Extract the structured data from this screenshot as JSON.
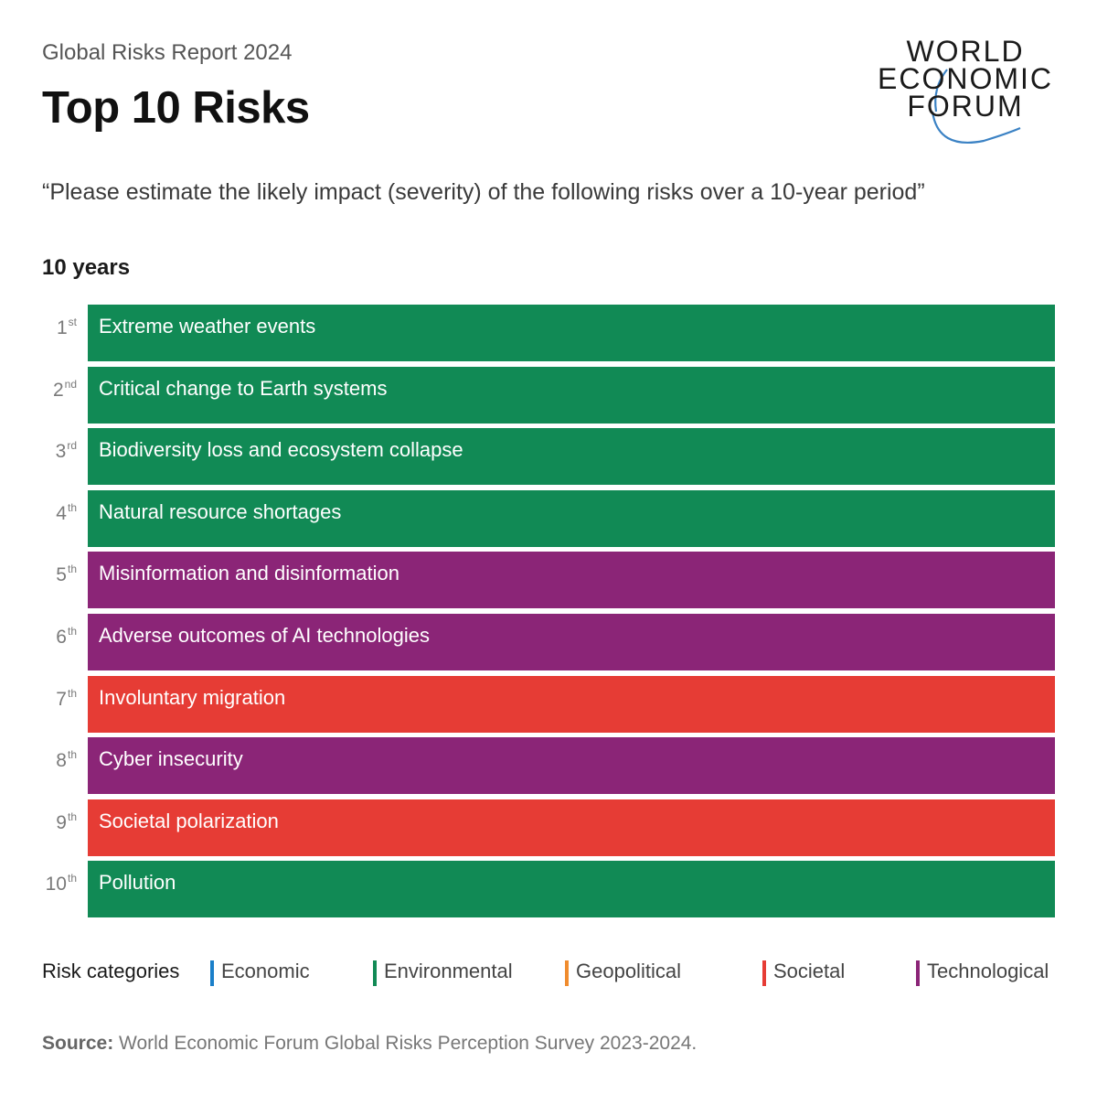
{
  "header": {
    "report_name": "Global Risks Report 2024",
    "title": "Top 10 Risks",
    "logo_lines": [
      "WORLD",
      "ECONOMIC",
      "FORUM"
    ]
  },
  "question": "“Please estimate the likely impact (severity) of the following risks over a 10-year period”",
  "period_label": "10 years",
  "colors": {
    "Economic": "#1a7fc9",
    "Environmental": "#118a55",
    "Geopolitical": "#f08c2e",
    "Societal": "#e63c35",
    "Technological": "#8b2577",
    "logo_arc": "#3b82c4"
  },
  "chart_data": {
    "type": "table",
    "title": "Top 10 Risks",
    "columns": [
      "rank",
      "risk",
      "category"
    ],
    "rows": [
      {
        "rank": "1",
        "suffix": "st",
        "risk": "Extreme weather events",
        "category": "Environmental"
      },
      {
        "rank": "2",
        "suffix": "nd",
        "risk": "Critical change to Earth systems",
        "category": "Environmental"
      },
      {
        "rank": "3",
        "suffix": "rd",
        "risk": "Biodiversity loss and ecosystem collapse",
        "category": "Environmental"
      },
      {
        "rank": "4",
        "suffix": "th",
        "risk": "Natural resource shortages",
        "category": "Environmental"
      },
      {
        "rank": "5",
        "suffix": "th",
        "risk": "Misinformation and disinformation",
        "category": "Technological"
      },
      {
        "rank": "6",
        "suffix": "th",
        "risk": "Adverse outcomes of AI technologies",
        "category": "Technological"
      },
      {
        "rank": "7",
        "suffix": "th",
        "risk": "Involuntary migration",
        "category": "Societal"
      },
      {
        "rank": "8",
        "suffix": "th",
        "risk": "Cyber insecurity",
        "category": "Technological"
      },
      {
        "rank": "9",
        "suffix": "th",
        "risk": "Societal polarization",
        "category": "Societal"
      },
      {
        "rank": "10",
        "suffix": "th",
        "risk": "Pollution",
        "category": "Environmental"
      }
    ]
  },
  "legend": {
    "title": "Risk categories",
    "items": [
      "Economic",
      "Environmental",
      "Geopolitical",
      "Societal",
      "Technological"
    ]
  },
  "source": {
    "label": "Source:",
    "text": "World Economic Forum Global Risks Perception Survey 2023-2024."
  }
}
